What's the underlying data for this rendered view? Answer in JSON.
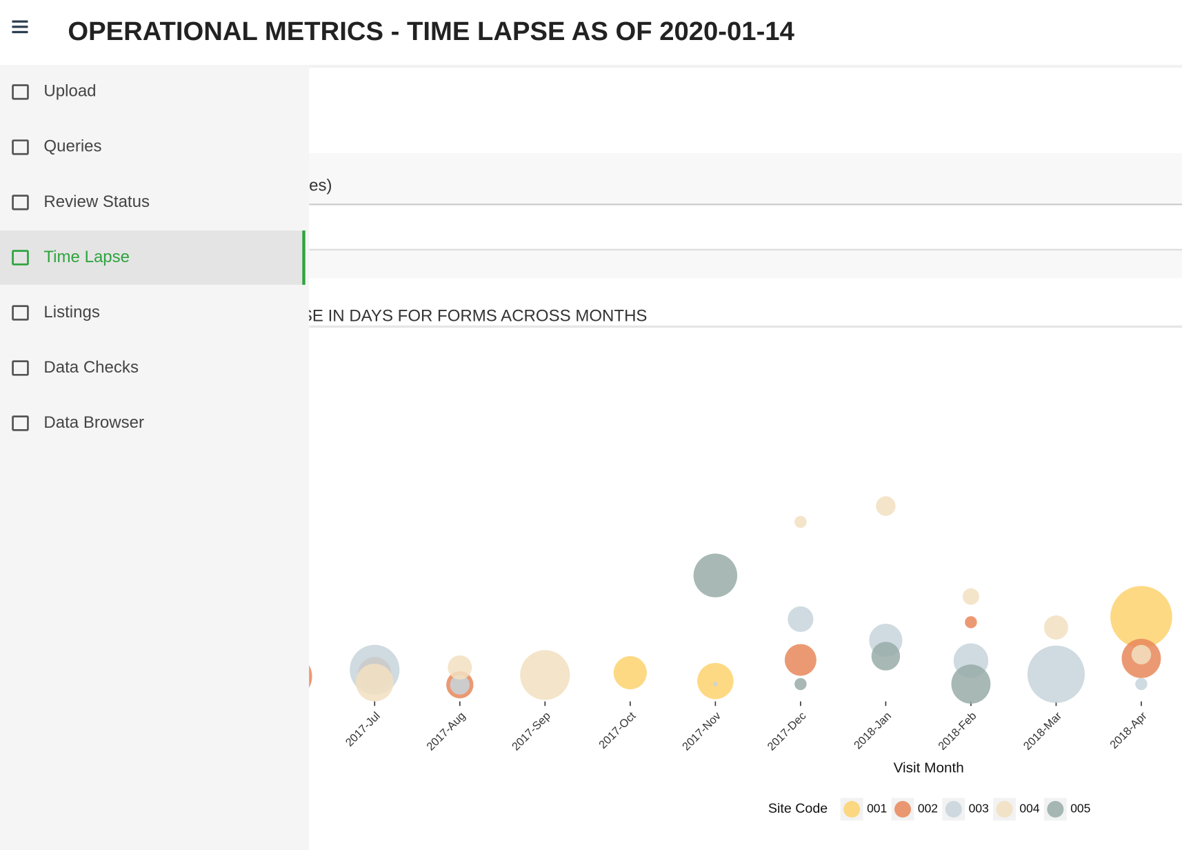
{
  "header": {
    "title": "OPERATIONAL METRICS - TIME LAPSE AS OF 2020-01-14"
  },
  "nav": {
    "items": [
      "Upload",
      "Queries",
      "Review Status",
      "Time Lapse",
      "Listings",
      "Data Checks",
      "Data Browser"
    ],
    "active": 3
  },
  "panel": {
    "label": "es)",
    "chart_heading": "PSE IN DAYS FOR FORMS ACROSS MONTHS"
  },
  "chart_data": {
    "type": "bubble",
    "x_label": "Visit Month",
    "legend_title": "Site Code",
    "categories": [
      null,
      "2017-Jul",
      "2017-Aug",
      "2017-Sep",
      "2017-Oct",
      "2017-Nov",
      "2017-Dec",
      "2018-Jan",
      "2018-Feb",
      "2018-Mar",
      "2018-Apr"
    ],
    "series": [
      {
        "name": "001",
        "color": "#fdd26e",
        "values": [
          null,
          null,
          null,
          null,
          7.6,
          5.4,
          null,
          null,
          null,
          null,
          22.4
        ],
        "sizes": [
          null,
          null,
          null,
          null,
          22,
          24,
          null,
          null,
          null,
          null,
          41
        ]
      },
      {
        "name": "002",
        "color": "#e8875a",
        "values": [
          6.6,
          7.4,
          4.4,
          null,
          null,
          null,
          11,
          null,
          21,
          null,
          11.4
        ],
        "sizes": [
          30,
          22,
          18,
          null,
          null,
          null,
          21,
          null,
          8,
          null,
          26
        ]
      },
      {
        "name": "003",
        "color": "#c7d5dc",
        "values": [
          null,
          8.4,
          4.4,
          null,
          null,
          4.6,
          21.8,
          16.2,
          10.8,
          7.2,
          4.6
        ],
        "sizes": [
          null,
          33,
          13,
          null,
          null,
          3,
          17,
          22,
          23,
          38,
          8
        ]
      },
      {
        "name": "004",
        "color": "#f2dfc0",
        "values": [
          null,
          5,
          9,
          7,
          null,
          null,
          47.6,
          51.8,
          27.8,
          19.6,
          12.4
        ],
        "sizes": [
          null,
          25,
          16,
          33,
          null,
          null,
          8,
          13,
          11,
          16,
          13
        ]
      },
      {
        "name": "005",
        "color": "#98aca8",
        "values": [
          null,
          null,
          null,
          null,
          null,
          33.4,
          4.6,
          12,
          4.6,
          null,
          null
        ],
        "sizes": [
          null,
          null,
          null,
          null,
          null,
          29,
          8,
          19,
          26,
          null,
          null
        ]
      }
    ]
  }
}
